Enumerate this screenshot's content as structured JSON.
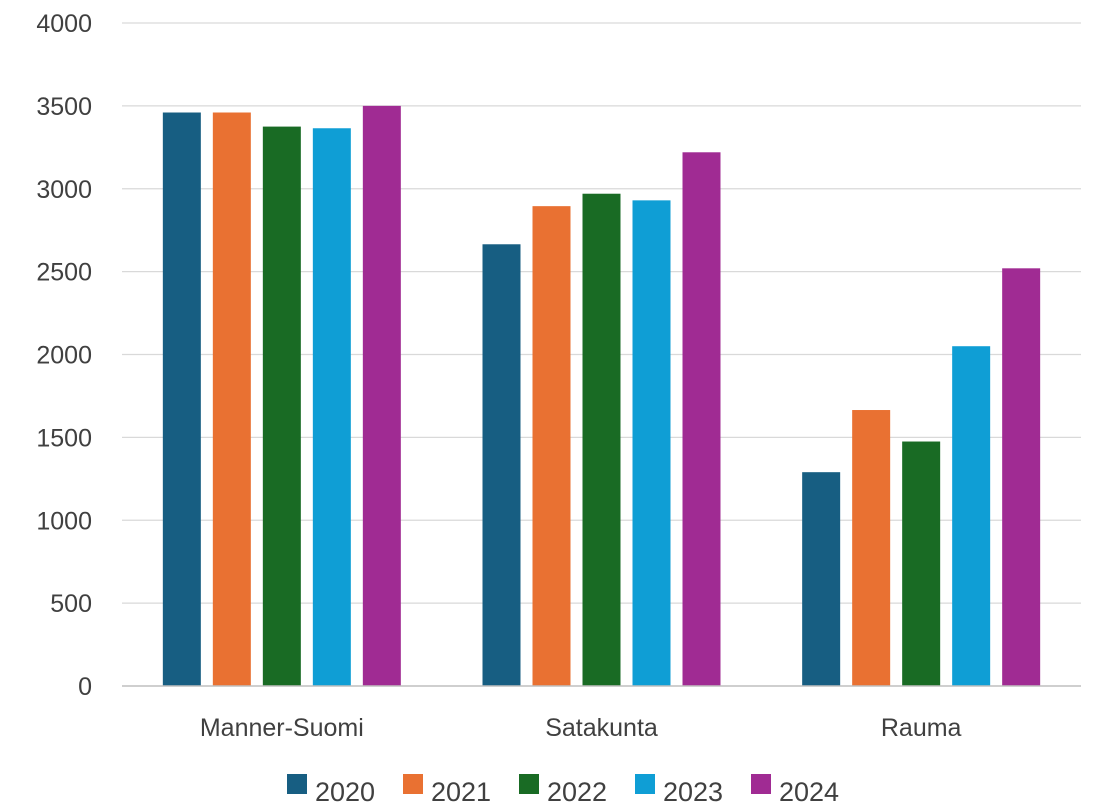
{
  "chart_data": {
    "type": "bar",
    "title": "",
    "xlabel": "",
    "ylabel": "",
    "categories": [
      "Manner-Suomi",
      "Satakunta",
      "Rauma"
    ],
    "ylim": [
      0,
      4000
    ],
    "yticks": [
      "0",
      "500",
      "1000",
      "1500",
      "2000",
      "2500",
      "3000",
      "3500",
      "4000"
    ],
    "grid": true,
    "legend_position": "bottom",
    "series": [
      {
        "name": "2020",
        "color": "#175E82",
        "values": [
          3460,
          2665,
          1290
        ]
      },
      {
        "name": "2021",
        "color": "#E97132",
        "values": [
          3460,
          2895,
          1665
        ]
      },
      {
        "name": "2022",
        "color": "#196B24",
        "values": [
          3375,
          2970,
          1475
        ]
      },
      {
        "name": "2023",
        "color": "#0F9ED5",
        "values": [
          3365,
          2930,
          2050
        ]
      },
      {
        "name": "2024",
        "color": "#A02B93",
        "values": [
          3500,
          3220,
          2520
        ]
      }
    ]
  }
}
